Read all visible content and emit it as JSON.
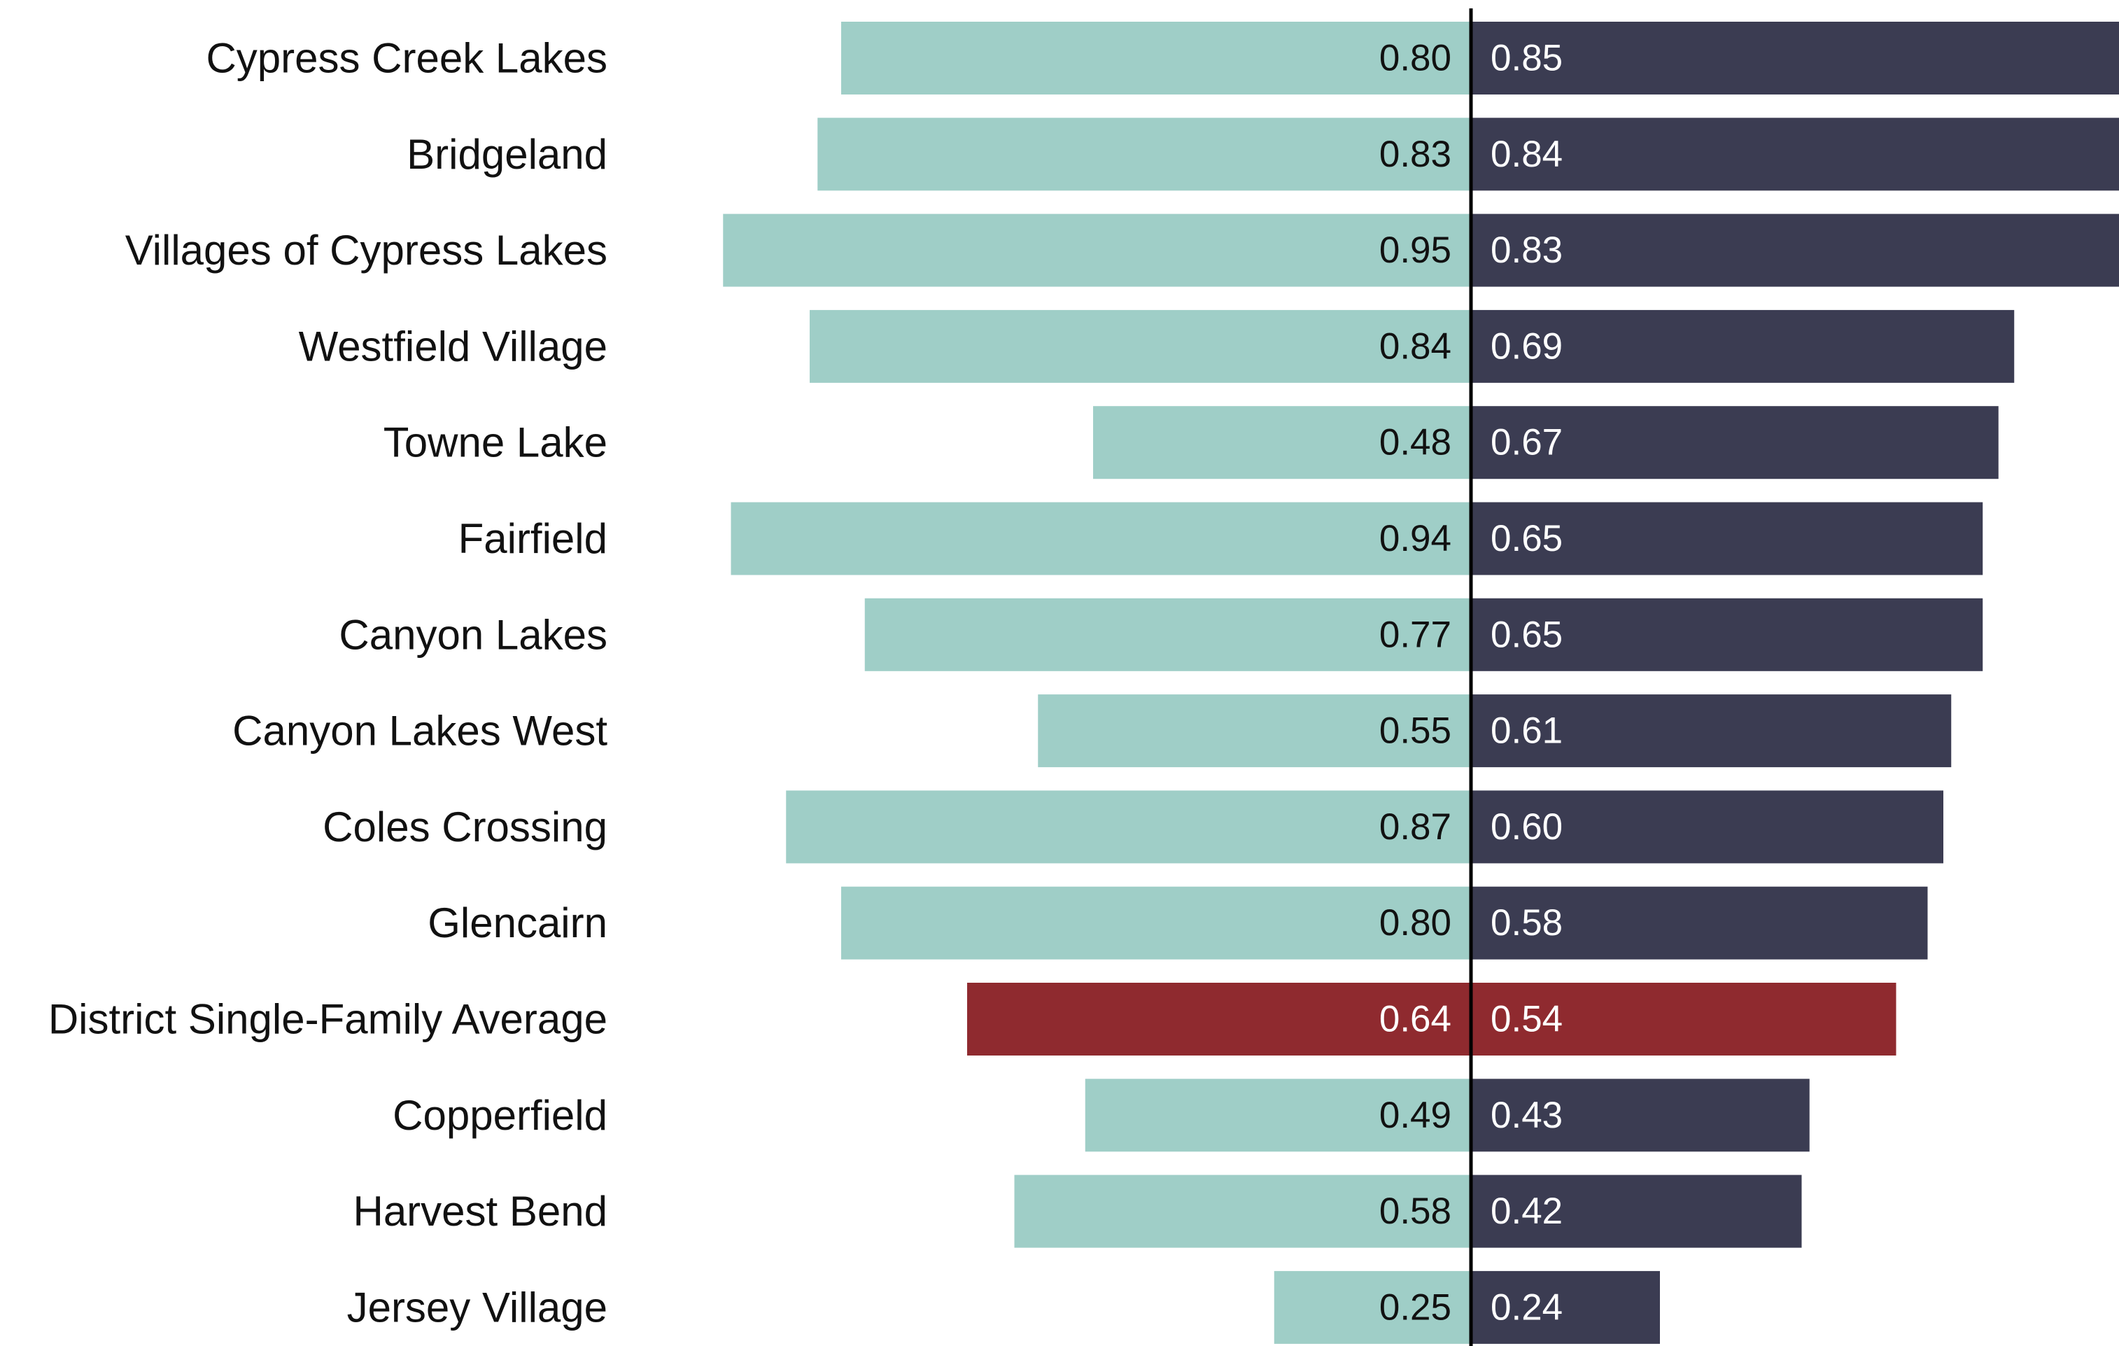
{
  "chart_data": {
    "type": "bar",
    "orientation": "horizontal",
    "layout": "diverging",
    "categories": [
      "Cypress Creek Lakes",
      "Bridgeland",
      "Villages of Cypress Lakes",
      "Westfield Village",
      "Towne Lake",
      "Fairfield",
      "Canyon Lakes",
      "Canyon Lakes West",
      "Coles Crossing",
      "Glencairn",
      "District Single-Family Average",
      "Copperfield",
      "Harvest Bend",
      "Jersey Village"
    ],
    "series": [
      {
        "side": "left",
        "color": "#9fcec7",
        "values": [
          0.8,
          0.83,
          0.95,
          0.84,
          0.48,
          0.94,
          0.77,
          0.55,
          0.87,
          0.8,
          0.64,
          0.49,
          0.58,
          0.25
        ],
        "value_labels": [
          "0.80",
          "0.83",
          "0.95",
          "0.84",
          "0.48",
          "0.94",
          "0.77",
          "0.55",
          "0.87",
          "0.80",
          "0.64",
          "0.49",
          "0.58",
          "0.25"
        ]
      },
      {
        "side": "right",
        "color": "#3b3c52",
        "values": [
          0.85,
          0.84,
          0.83,
          0.69,
          0.67,
          0.65,
          0.65,
          0.61,
          0.6,
          0.58,
          0.54,
          0.43,
          0.42,
          0.24
        ],
        "value_labels": [
          "0.85",
          "0.84",
          "0.83",
          "0.69",
          "0.67",
          "0.65",
          "0.65",
          "0.61",
          "0.60",
          "0.58",
          "0.54",
          "0.43",
          "0.42",
          "0.24"
        ]
      }
    ],
    "highlight": {
      "category": "District Single-Family Average",
      "color": "#8f2a2f"
    },
    "center_line_color": "#000000",
    "xlim": [
      0,
      1
    ],
    "grid": false,
    "legend": "none",
    "title": "",
    "xlabel": "",
    "ylabel": ""
  }
}
